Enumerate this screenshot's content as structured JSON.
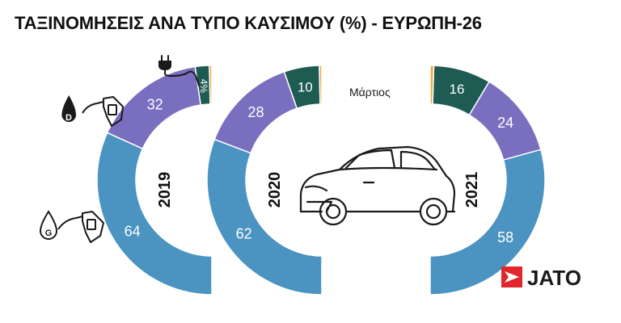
{
  "title": "ΤΑΞΙΝΟΜΗΣΕΙΣ ΑΝΑ ΤΥΠΟ ΚΑΥΣΙΜΟΥ (%) - ΕΥΡΩΠΗ-26",
  "month_label": "Μάρτιος",
  "logo": {
    "text": "JATO",
    "mark_color": "#e0252b",
    "text_color": "#1a1a1a"
  },
  "icons": [
    "ev-plug-icon",
    "diesel-pump-icon",
    "gasoline-pump-icon",
    "car-outline-icon"
  ],
  "colors": {
    "gasoline": "#4b93c0",
    "diesel": "#7a6fbf",
    "electric": "#1e5b53",
    "other": "#f2a93a",
    "label_light": "#ffffff",
    "label_dark": "#222222"
  },
  "chart_data": {
    "type": "pie",
    "subtype": "half-donut",
    "categories": [
      "2019",
      "2020",
      "2021"
    ],
    "series": [
      {
        "values": [
          64,
          62,
          58
        ],
        "labels": [
          "64",
          "62",
          "58"
        ]
      },
      {
        "values": [
          32,
          28,
          24
        ],
        "labels": [
          "32",
          "28",
          "24"
        ]
      },
      {
        "values": [
          4,
          10,
          16
        ],
        "labels": [
          "4%",
          "10",
          "16"
        ]
      },
      {
        "values": [
          0.7,
          0.7,
          1.0
        ],
        "labels": [
          "",
          "",
          ""
        ]
      }
    ],
    "legend": "icons"
  }
}
